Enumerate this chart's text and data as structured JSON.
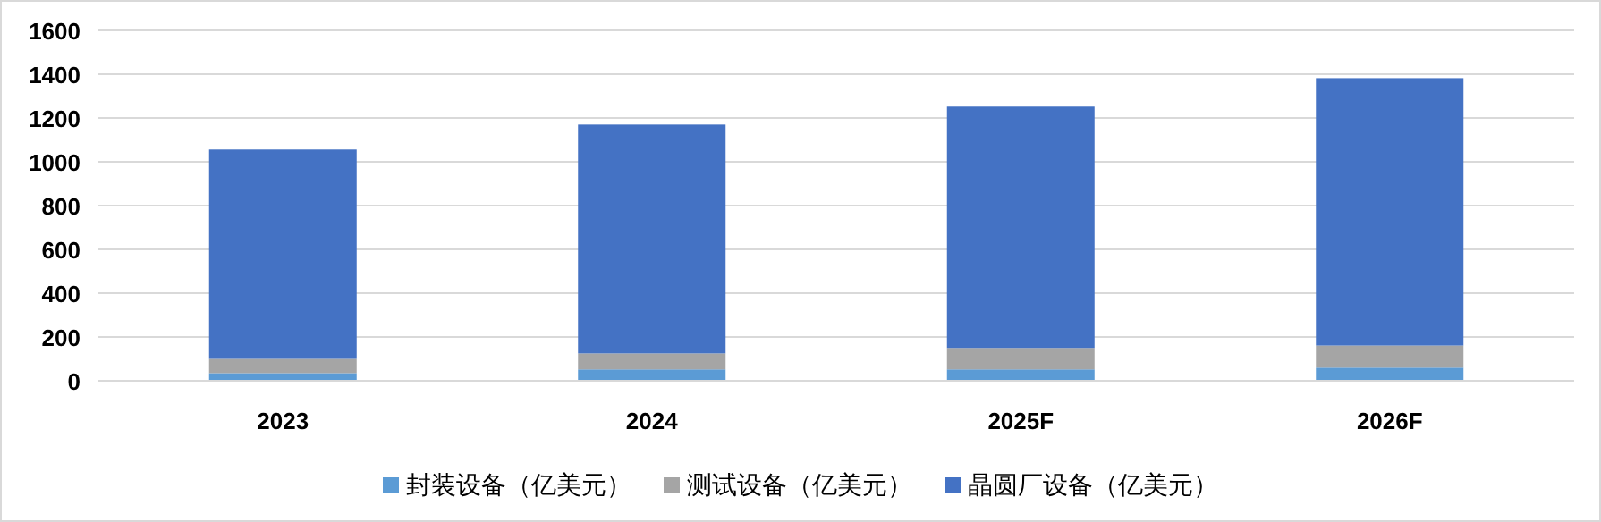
{
  "chart_data": {
    "type": "bar",
    "stacked": true,
    "categories": [
      "2023",
      "2024",
      "2025F",
      "2026F"
    ],
    "series": [
      {
        "name": "封装设备（亿美元）",
        "color": "#5b9bd5",
        "values": [
          35,
          52,
          52,
          60
        ]
      },
      {
        "name": "测试设备（亿美元）",
        "color": "#a5a5a5",
        "values": [
          65,
          73,
          98,
          101
        ]
      },
      {
        "name": "晶圆厂设备（亿美元）",
        "color": "#4472c4",
        "values": [
          956,
          1045,
          1102,
          1221
        ]
      }
    ],
    "ylim": [
      0,
      1600
    ],
    "yticks": [
      0,
      200,
      400,
      600,
      800,
      1000,
      1200,
      1400,
      1600
    ],
    "grid": "y",
    "legend": "bottom"
  }
}
